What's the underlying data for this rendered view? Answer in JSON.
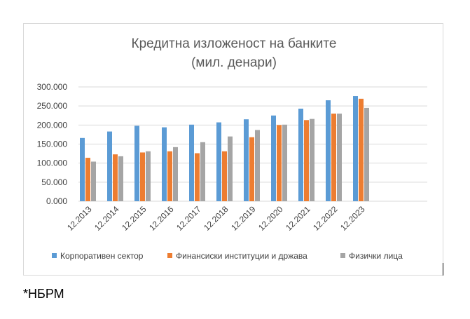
{
  "chart_data": {
    "type": "bar",
    "title_lines": [
      "Кредитна изложеност на банките",
      "(мил. денари)"
    ],
    "categories": [
      "12.2013",
      "12.2014",
      "12.2015",
      "12.2016",
      "12.2017",
      "12.2018",
      "12.2019",
      "12.2020",
      "12.2021",
      "12.2022",
      "12.2023"
    ],
    "y_tick_labels": [
      "0.000",
      "50.000",
      "100.000",
      "150.000",
      "200.000",
      "250.000",
      "300.000"
    ],
    "ylim": [
      0,
      300000
    ],
    "y_step": 50000,
    "grid": true,
    "legend_position": "bottom",
    "series": [
      {
        "name": "Корпоративен сектор",
        "color": "#5b9bd5",
        "values": [
          166000,
          183000,
          198000,
          194000,
          201000,
          207000,
          215000,
          225000,
          243000,
          265000,
          276000
        ]
      },
      {
        "name": "Финансиски институции и држава",
        "color": "#ed7d31",
        "values": [
          114000,
          123000,
          128000,
          131000,
          126000,
          131000,
          168000,
          200000,
          213000,
          230000,
          269000
        ]
      },
      {
        "name": "Физички лица",
        "color": "#a5a5a5",
        "values": [
          104000,
          118000,
          131000,
          142000,
          155000,
          170000,
          187000,
          201000,
          216000,
          230000,
          245000
        ]
      }
    ]
  },
  "footnote": "*НБРМ"
}
